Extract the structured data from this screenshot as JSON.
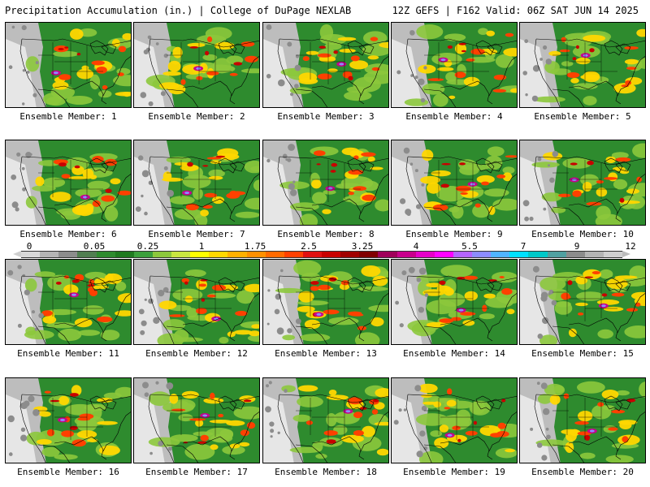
{
  "header": {
    "left": "Precipitation Accumulation (in.) | College of DuPage NEXLAB",
    "right": "12Z GEFS | F162 Valid: 06Z SAT JUN 14 2025"
  },
  "members": [
    "Ensemble Member: 1",
    "Ensemble Member: 2",
    "Ensemble Member: 3",
    "Ensemble Member: 4",
    "Ensemble Member: 5",
    "Ensemble Member: 6",
    "Ensemble Member: 7",
    "Ensemble Member: 8",
    "Ensemble Member: 9",
    "Ensemble Member: 10",
    "Ensemble Member: 11",
    "Ensemble Member: 12",
    "Ensemble Member: 13",
    "Ensemble Member: 14",
    "Ensemble Member: 15",
    "Ensemble Member: 16",
    "Ensemble Member: 17",
    "Ensemble Member: 18",
    "Ensemble Member: 19",
    "Ensemble Member: 20"
  ],
  "legend": {
    "labels": [
      "0",
      "0.05",
      "0.25",
      "1",
      "1.75",
      "2.5",
      "3.25",
      "4",
      "5.5",
      "7",
      "9",
      "12"
    ],
    "colors": [
      "#d8d8d8",
      "#b4b4b4",
      "#8c8c8c",
      "#507e50",
      "#2e8b2e",
      "#1f7a1f",
      "#3ca03c",
      "#8cc83c",
      "#c8e640",
      "#ffff00",
      "#ffd700",
      "#ffb000",
      "#ff9000",
      "#ff6a00",
      "#ff4000",
      "#e01010",
      "#c80000",
      "#a00000",
      "#800000",
      "#a0005a",
      "#c8008c",
      "#e600c8",
      "#ff00ff",
      "#b464ff",
      "#8c8cff",
      "#50b4ff",
      "#00e0ff",
      "#00c8c8",
      "#50a0a0",
      "#8c8c8c",
      "#b4b4b4",
      "#cfcfcf"
    ]
  }
}
